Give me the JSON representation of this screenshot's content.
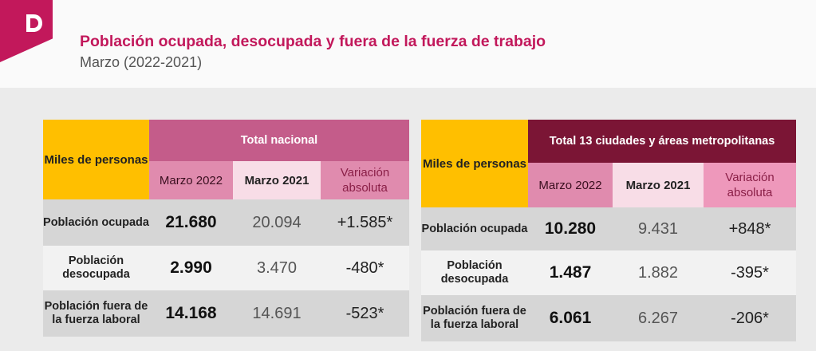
{
  "header": {
    "logo_letter": "D",
    "title": "Población ocupada, desocupada y fuera de la fuerza de trabajo",
    "subtitle": "Marzo (2022-2021)"
  },
  "colors": {
    "brand": "#c2185b",
    "yellow": "#ffbf00",
    "maroon": "#7b1535",
    "magenta": "#c45c8a",
    "pink": "#e08bae"
  },
  "tables": [
    {
      "unit_label": "Miles de personas",
      "group_header": "Total nacional",
      "columns": [
        "Marzo 2022",
        "Marzo 2021",
        "Variación absoluta"
      ],
      "rows": [
        {
          "label": "Población ocupada",
          "v2022": "21.680",
          "v2021": "20.094",
          "var": "+1.585*"
        },
        {
          "label": "Población desocupada",
          "v2022": "2.990",
          "v2021": "3.470",
          "var": "-480*"
        },
        {
          "label": "Población fuera de la fuerza laboral",
          "v2022": "14.168",
          "v2021": "14.691",
          "var": "-523*"
        }
      ]
    },
    {
      "unit_label": "Miles de personas",
      "group_header": "Total 13 ciudades y áreas metropolitanas",
      "columns": [
        "Marzo 2022",
        "Marzo 2021",
        "Variación absoluta"
      ],
      "rows": [
        {
          "label": "Población ocupada",
          "v2022": "10.280",
          "v2021": "9.431",
          "var": "+848*"
        },
        {
          "label": "Población desocupada",
          "v2022": "1.487",
          "v2021": "1.882",
          "var": "-395*"
        },
        {
          "label": "Población fuera de la fuerza laboral",
          "v2022": "6.061",
          "v2021": "6.267",
          "var": "-206*"
        }
      ]
    }
  ]
}
